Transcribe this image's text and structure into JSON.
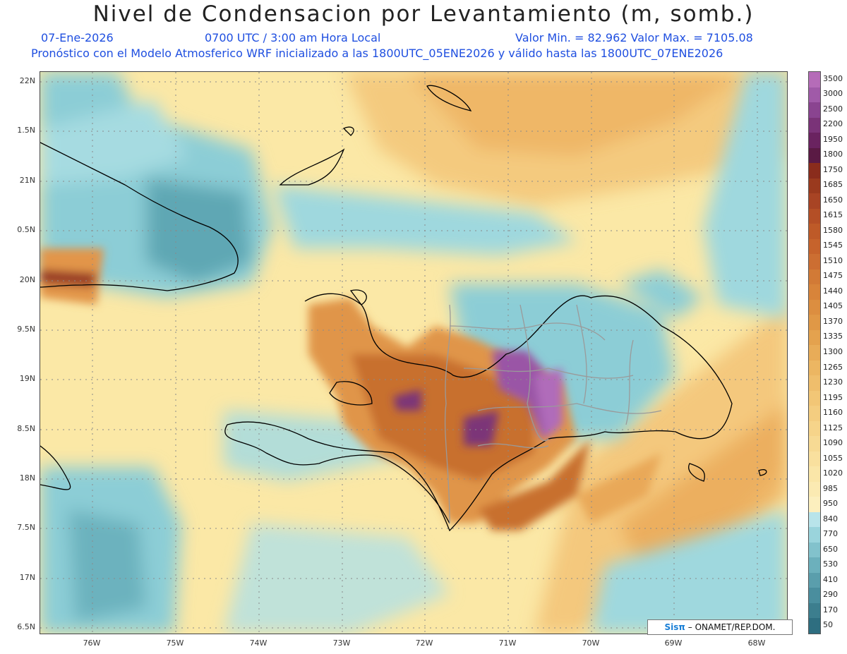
{
  "header": {
    "title": "Nivel de Condensacion por Levantamiento (m, somb.)",
    "date": "07-Ene-2026",
    "time": "0700 UTC / 3:00 am Hora Local",
    "min_max": "Valor Min. = 82.962   Valor Max. = 7105.08",
    "forecast_note": "Pronóstico con el Modelo Atmosferico WRF inicializado a las 1800UTC_05ENE2026 y válido hasta las  1800UTC_07ENE2026"
  },
  "map": {
    "lat_labels": [
      "22N",
      "1.5N",
      "21N",
      "0.5N",
      "20N",
      "9.5N",
      "19N",
      "8.5N",
      "18N",
      "7.5N",
      "17N",
      "6.5N"
    ],
    "lon_labels": [
      "76W",
      "75W",
      "74W",
      "73W",
      "72W",
      "71W",
      "70W",
      "69W",
      "68W"
    ]
  },
  "colorbar": {
    "labels": [
      "3500",
      "3000",
      "2500",
      "2200",
      "1950",
      "1800",
      "1750",
      "1685",
      "1650",
      "1615",
      "1580",
      "1545",
      "1510",
      "1475",
      "1440",
      "1405",
      "1370",
      "1335",
      "1300",
      "1265",
      "1230",
      "1195",
      "1160",
      "1125",
      "1090",
      "1055",
      "1020",
      "985",
      "950",
      "840",
      "770",
      "650",
      "530",
      "410",
      "290",
      "170",
      "50"
    ],
    "colors": [
      "#b56cb8",
      "#a05aa8",
      "#8a4490",
      "#7a3378",
      "#6a2360",
      "#5a1a44",
      "#8a2c1c",
      "#9a3a1e",
      "#a84424",
      "#b44f26",
      "#be5a28",
      "#c6632c",
      "#cc6e32",
      "#d27a36",
      "#d8843a",
      "#dc8e40",
      "#e09846",
      "#e4a24e",
      "#e8ac58",
      "#ecb662",
      "#efbe6c",
      "#f2c676",
      "#f4cd80",
      "#f6d48a",
      "#f7da94",
      "#f9e09e",
      "#fae6a8",
      "#fbeab2",
      "#fcefbe",
      "#b8e4ea",
      "#9ad4dc",
      "#82c2cc",
      "#6cb0bc",
      "#5a9eac",
      "#4a8e9e",
      "#3c7e8e",
      "#2e6e80"
    ]
  },
  "credit": {
    "brand": "Sisπ",
    "text": "– ONAMET/REP.DOM."
  }
}
